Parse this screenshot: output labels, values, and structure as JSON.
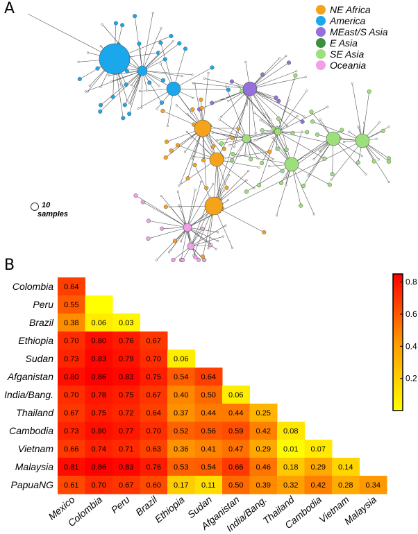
{
  "panel_a_label": "A",
  "panel_b_label": "B",
  "network": {
    "legend": [
      {
        "name": "NE Africa",
        "color": "#f5a31a"
      },
      {
        "name": "America",
        "color": "#1aa7ec"
      },
      {
        "name": "MEast/S Asia",
        "color": "#9370db"
      },
      {
        "name": "E Asia",
        "color": "#3c8f3c"
      },
      {
        "name": "SE Asia",
        "color": "#9be07a"
      },
      {
        "name": "Oceania",
        "color": "#f0a0e8"
      }
    ],
    "scale_label_1": "10",
    "scale_label_2": "samples"
  },
  "chart_data": {
    "type": "heatmap",
    "rows": [
      "Colombia",
      "Peru",
      "Brazil",
      "Ethiopia",
      "Sudan",
      "Afganistan",
      "India/Bang.",
      "Thailand",
      "Cambodia",
      "Vietnam",
      "Malaysia",
      "PapuaNG"
    ],
    "columns": [
      "Mexico",
      "Colombia",
      "Peru",
      "Brazil",
      "Ethiopia",
      "Sudan",
      "Afganistan",
      "India/Bang.",
      "Thailand",
      "Cambodia",
      "Vietnam",
      "Malaysia"
    ],
    "values": [
      [
        0.64
      ],
      [
        0.55,
        null
      ],
      [
        0.38,
        0.06,
        0.03
      ],
      [
        0.7,
        0.8,
        0.76,
        0.67
      ],
      [
        0.73,
        0.83,
        0.79,
        0.7,
        0.06
      ],
      [
        0.8,
        0.86,
        0.83,
        0.75,
        0.54,
        0.64
      ],
      [
        0.7,
        0.78,
        0.75,
        0.67,
        0.4,
        0.5,
        0.06
      ],
      [
        0.67,
        0.75,
        0.72,
        0.64,
        0.37,
        0.44,
        0.44,
        0.25
      ],
      [
        0.73,
        0.8,
        0.77,
        0.7,
        0.52,
        0.56,
        0.59,
        0.42,
        0.08
      ],
      [
        0.66,
        0.74,
        0.71,
        0.63,
        0.36,
        0.41,
        0.47,
        0.29,
        0.01,
        0.07
      ],
      [
        0.81,
        0.86,
        0.83,
        0.76,
        0.53,
        0.54,
        0.66,
        0.46,
        0.18,
        0.29,
        0.14
      ],
      [
        0.61,
        0.7,
        0.67,
        0.6,
        0.17,
        0.11,
        0.5,
        0.39,
        0.32,
        0.42,
        0.28,
        0.34
      ]
    ],
    "colorbar": {
      "range": [
        0,
        0.85
      ],
      "ticks": [
        "0.2",
        "0.4",
        "0.6",
        "0.8"
      ],
      "colors": [
        "#ffff00",
        "#ff9900",
        "#ff0000"
      ]
    }
  }
}
